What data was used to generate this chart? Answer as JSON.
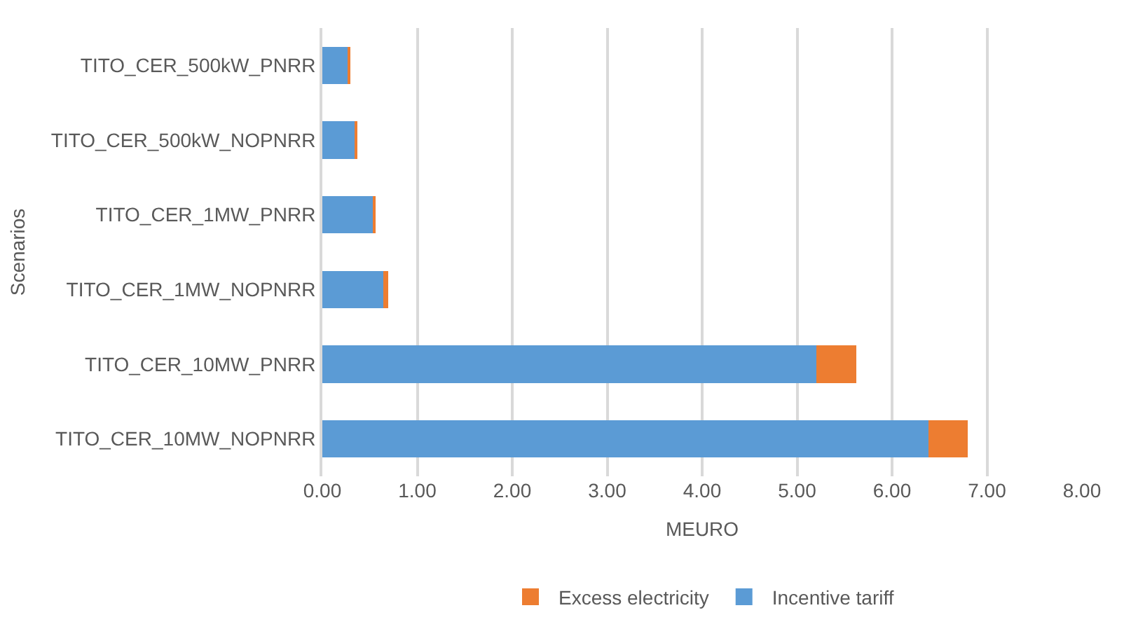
{
  "chart_data": {
    "type": "bar",
    "orientation": "horizontal",
    "stacked": true,
    "xlabel": "MEURO",
    "ylabel": "Scenarios",
    "categories": [
      "TITO_CER_500kW_PNRR",
      "TITO_CER_500kW_NOPNRR",
      "TITO_CER_1MW_PNRR",
      "TITO_CER_1MW_NOPNRR",
      "TITO_CER_10MW_PNRR",
      "TITO_CER_10MW_NOPNRR"
    ],
    "series": [
      {
        "name": "Incentive tariff",
        "color": "#5b9bd5",
        "values": [
          0.27,
          0.34,
          0.53,
          0.64,
          5.2,
          6.38
        ]
      },
      {
        "name": "Excess electricity",
        "color": "#ed7d31",
        "values": [
          0.02,
          0.02,
          0.03,
          0.05,
          0.42,
          0.42
        ]
      }
    ],
    "xlim": [
      0,
      8
    ],
    "xticks": [
      {
        "value": 0,
        "label": "0.00"
      },
      {
        "value": 1,
        "label": "1.00"
      },
      {
        "value": 2,
        "label": "2.00"
      },
      {
        "value": 3,
        "label": "3.00"
      },
      {
        "value": 4,
        "label": "4.00"
      },
      {
        "value": 5,
        "label": "5.00"
      },
      {
        "value": 6,
        "label": "6.00"
      },
      {
        "value": 7,
        "label": "7.00"
      },
      {
        "value": 8,
        "label": "8.00"
      }
    ],
    "grid": "x",
    "legend": "bottom"
  }
}
